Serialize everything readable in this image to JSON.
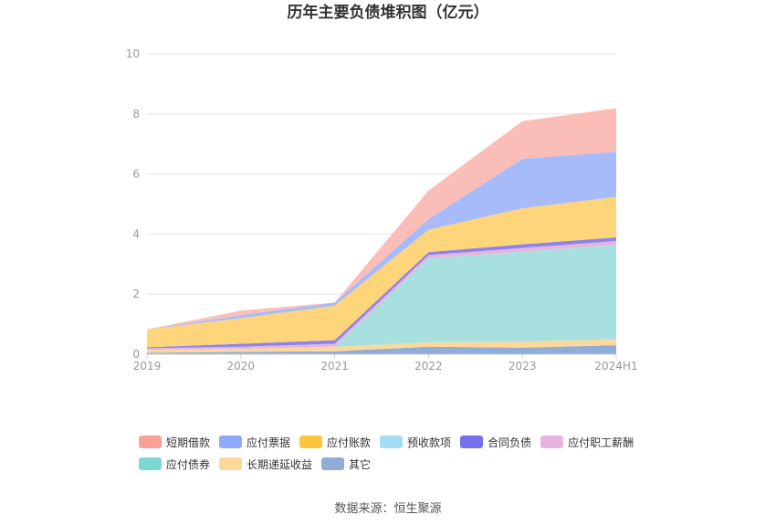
{
  "title": "历年主要负债堆积图（亿元）",
  "source": "数据来源：恒生聚源",
  "chart_data": {
    "type": "area",
    "stacked": true,
    "categories": [
      "2019",
      "2020",
      "2021",
      "2022",
      "2023",
      "2024H1"
    ],
    "ylim": [
      0,
      10
    ],
    "yticks": [
      0,
      2,
      4,
      6,
      8,
      10
    ],
    "grid": true,
    "legend_position": "bottom",
    "series": [
      {
        "name": "其它",
        "color": "#8fadd6",
        "values": [
          0.05,
          0.08,
          0.1,
          0.25,
          0.22,
          0.3
        ]
      },
      {
        "name": "长期递延收益",
        "color": "#fcd99a",
        "values": [
          0.1,
          0.1,
          0.15,
          0.15,
          0.2,
          0.2
        ]
      },
      {
        "name": "应付债券",
        "color": "#a8e0e0",
        "values": [
          0,
          0,
          0,
          2.8,
          3.0,
          3.15
        ]
      },
      {
        "name": "应付职工薪酬",
        "color": "#e8b4de",
        "values": [
          0.05,
          0.07,
          0.1,
          0.1,
          0.12,
          0.12
        ]
      },
      {
        "name": "合同负债",
        "color": "#8a84ec",
        "values": [
          0.03,
          0.1,
          0.12,
          0.1,
          0.12,
          0.12
        ]
      },
      {
        "name": "预收款项",
        "color": "#a6dcf8",
        "values": [
          0,
          0,
          0,
          0,
          0,
          0
        ]
      },
      {
        "name": "应付账款",
        "color": "#fed57a",
        "values": [
          0.6,
          0.85,
          1.15,
          0.75,
          1.2,
          1.35
        ]
      },
      {
        "name": "应付票据",
        "color": "#a7bbfb",
        "values": [
          0,
          0.1,
          0.1,
          0.35,
          1.65,
          1.5
        ]
      },
      {
        "name": "短期借款",
        "color": "#fbbdb8",
        "values": [
          0,
          0.15,
          0,
          0.95,
          1.25,
          1.45
        ]
      }
    ]
  },
  "legend": {
    "rows": [
      [
        {
          "label": "短期借款",
          "color": "#f9a097"
        },
        {
          "label": "应付票据",
          "color": "#8fa9fa"
        },
        {
          "label": "应付账款",
          "color": "#fcc53e"
        },
        {
          "label": "预收款项",
          "color": "#a6dcf8"
        },
        {
          "label": "合同负债",
          "color": "#7670ec"
        },
        {
          "label": "应付职工薪酬",
          "color": "#e8b4de"
        }
      ],
      [
        {
          "label": "应付债券",
          "color": "#7fd7d4"
        },
        {
          "label": "长期递延收益",
          "color": "#fcd99a"
        },
        {
          "label": "其它",
          "color": "#8fadd6"
        }
      ]
    ]
  }
}
